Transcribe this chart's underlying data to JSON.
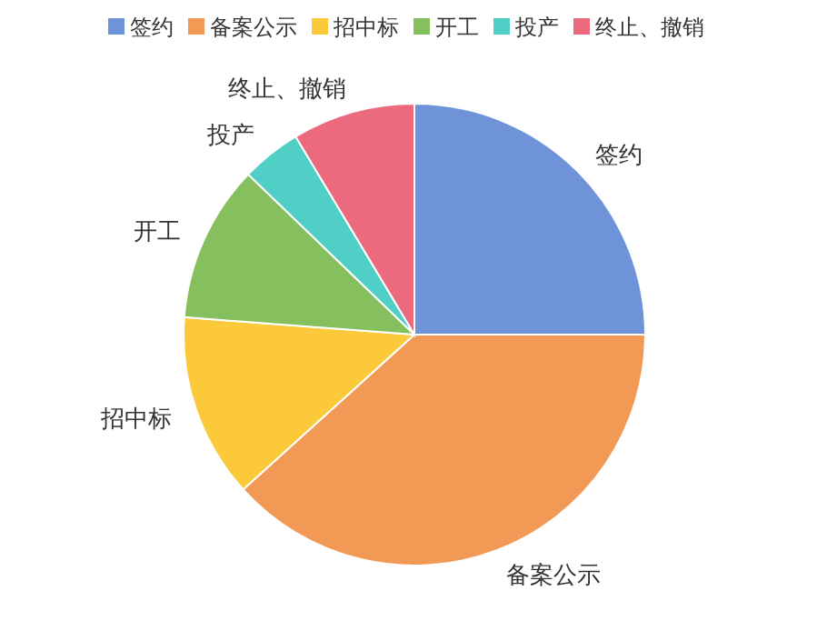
{
  "chart_data": {
    "type": "pie",
    "categories": [
      "签约",
      "备案公示",
      "招中标",
      "开工",
      "投产",
      "终止、撤销"
    ],
    "values": [
      25,
      38.3,
      12.9,
      11,
      4.2,
      8.6
    ],
    "colors": [
      "#6f93d8",
      "#f29a55",
      "#fcc93a",
      "#86c05e",
      "#4fcfc6",
      "#ec6a7e"
    ],
    "legend": "top"
  }
}
